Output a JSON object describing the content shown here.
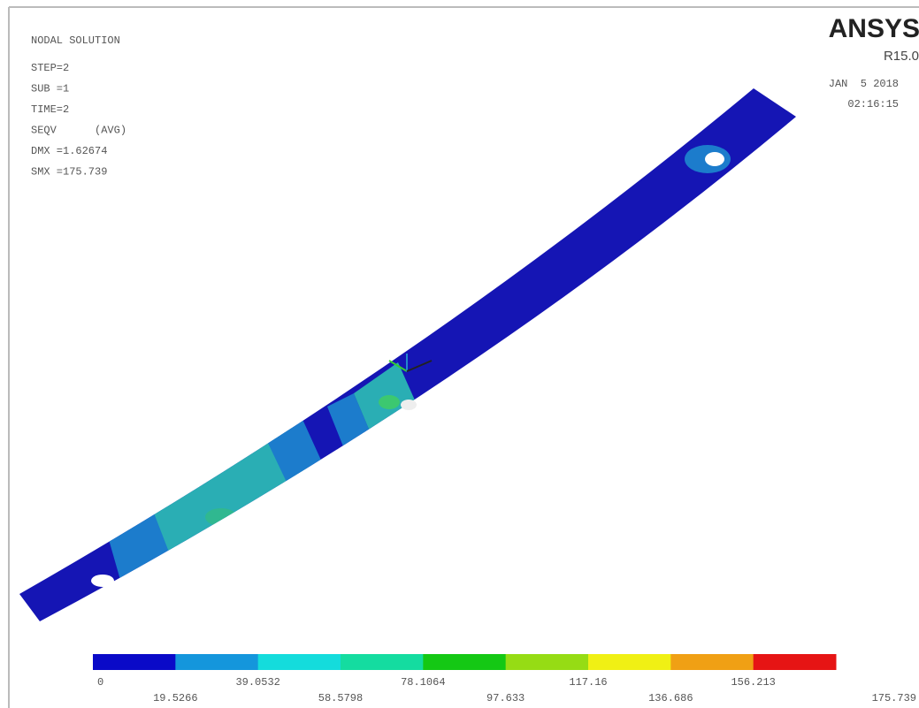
{
  "header": {
    "title": "NODAL SOLUTION",
    "lines": [
      "STEP=2",
      "SUB =1",
      "TIME=2",
      "SEQV      (AVG)",
      "DMX =1.62674",
      "SMX =175.739"
    ]
  },
  "logo": {
    "name": "ANSYS",
    "version": "R15.0"
  },
  "timestamp": {
    "date": "JAN  5 2018",
    "time": "02:16:15"
  },
  "legend": {
    "colors": [
      "#0a0ac8",
      "#1496dc",
      "#14dcdc",
      "#14dca0",
      "#14c814",
      "#96dc14",
      "#f0f014",
      "#f0a014",
      "#e61414"
    ],
    "labels": [
      "0",
      "19.5266",
      "39.0532",
      "58.5798",
      "78.1064",
      "97.633",
      "117.16",
      "136.686",
      "156.213",
      "175.739"
    ]
  }
}
